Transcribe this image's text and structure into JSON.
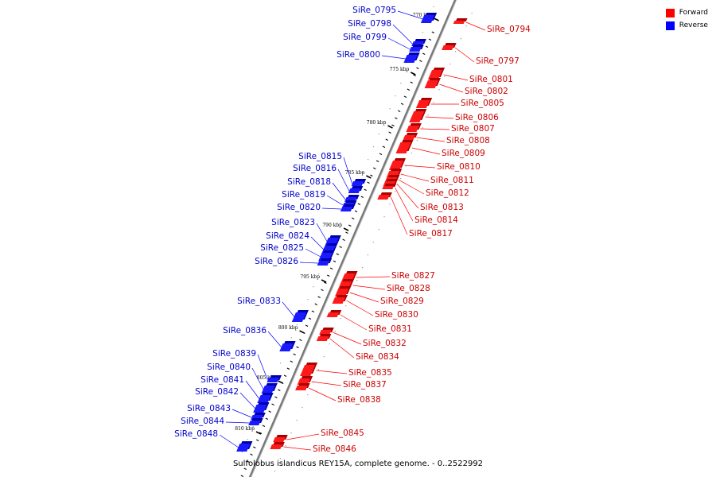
{
  "legend": {
    "forward_label": "Forward",
    "reverse_label": "Reverse",
    "forward_color": "#ff0000",
    "reverse_color": "#0000ff"
  },
  "caption": "Sulfolobus islandicus REY15A, complete genome. - 0..2522992",
  "ticks": [
    "770 kbp",
    "775 kbp",
    "780 kbp",
    "785 kbp",
    "790 kbp",
    "795 kbp",
    "800 kbp",
    "805 kbp",
    "810 kbp"
  ],
  "reverse_genes": [
    "SiRe_0795",
    "SiRe_0798",
    "SiRe_0799",
    "SiRe_0800",
    "SiRe_0815",
    "SiRe_0816",
    "SiRe_0818",
    "SiRe_0819",
    "SiRe_0820",
    "SiRe_0823",
    "SiRe_0824",
    "SiRe_0825",
    "SiRe_0826",
    "SiRe_0833",
    "SiRe_0836",
    "SiRe_0839",
    "SiRe_0840",
    "SiRe_0841",
    "SiRe_0842",
    "SiRe_0843",
    "SiRe_0844",
    "SiRe_0848"
  ],
  "forward_genes": [
    "SiRe_0794",
    "SiRe_0797",
    "SiRe_0801",
    "SiRe_0802",
    "SiRe_0805",
    "SiRe_0806",
    "SiRe_0807",
    "SiRe_0808",
    "SiRe_0809",
    "SiRe_0810",
    "SiRe_0811",
    "SiRe_0812",
    "SiRe_0813",
    "SiRe_0814",
    "SiRe_0817",
    "SiRe_0827",
    "SiRe_0828",
    "SiRe_0829",
    "SiRe_0830",
    "SiRe_0831",
    "SiRe_0832",
    "SiRe_0834",
    "SiRe_0835",
    "SiRe_0837",
    "SiRe_0838",
    "SiRe_0845",
    "SiRe_0846"
  ]
}
